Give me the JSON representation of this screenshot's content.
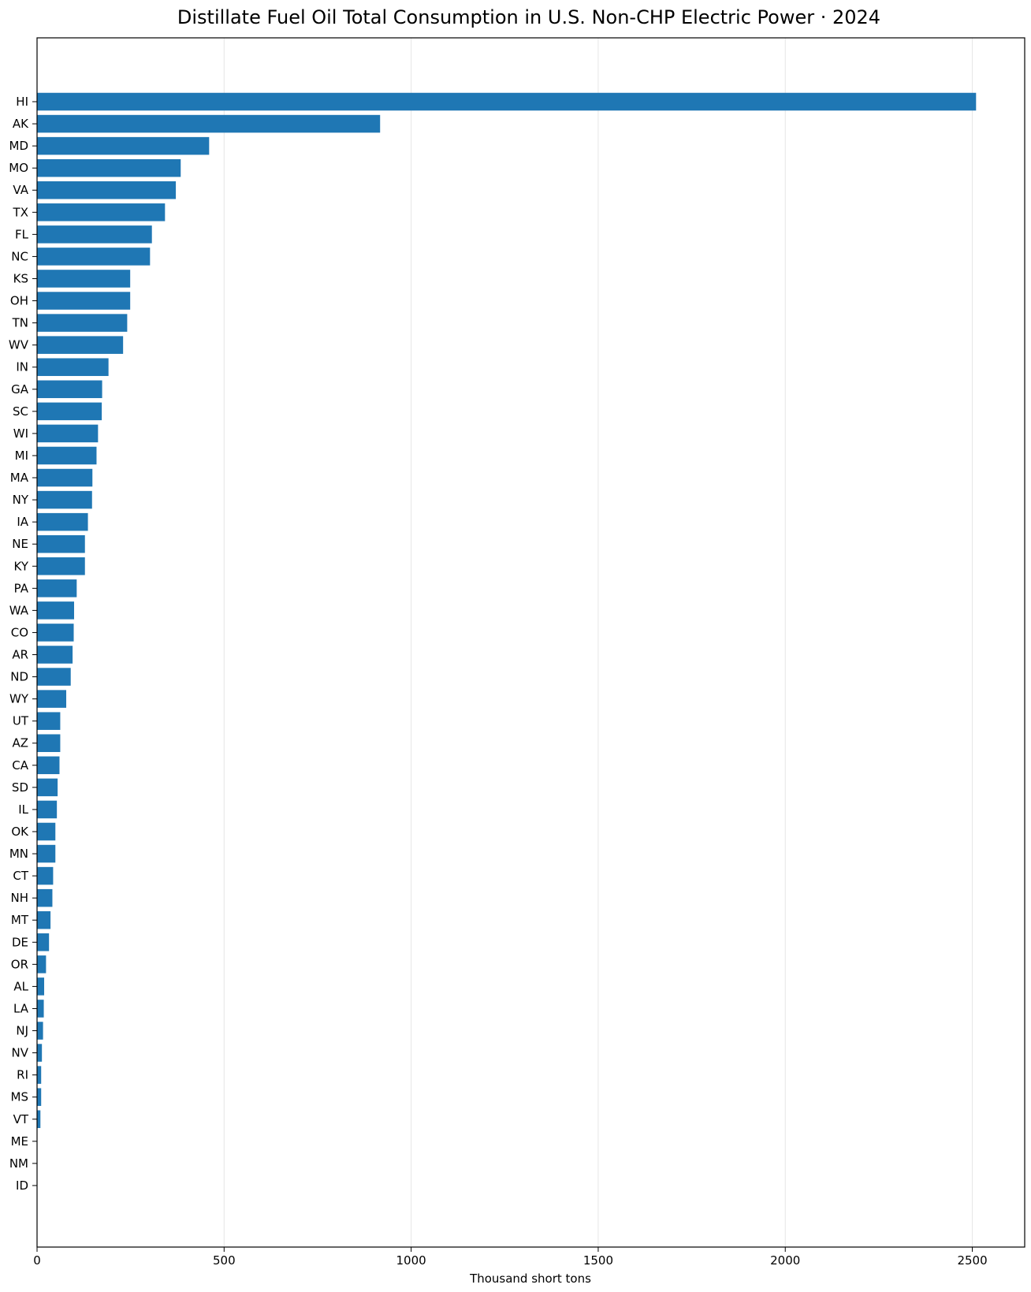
{
  "chart_data": {
    "type": "bar",
    "orientation": "horizontal",
    "title": "Distillate Fuel Oil Total Consumption in U.S. Non-CHP Electric Power · 2024",
    "xlabel": "Thousand short tons",
    "ylabel": "",
    "xlim": [
      0,
      2640
    ],
    "xticks": [
      0,
      500,
      1000,
      1500,
      2000,
      2500
    ],
    "grid": "vertical",
    "bar_color": "#1f77b4",
    "categories": [
      "HI",
      "AK",
      "MD",
      "MO",
      "VA",
      "TX",
      "FL",
      "NC",
      "KS",
      "OH",
      "TN",
      "WV",
      "IN",
      "GA",
      "SC",
      "WI",
      "MI",
      "MA",
      "NY",
      "IA",
      "NE",
      "KY",
      "PA",
      "WA",
      "CO",
      "AR",
      "ND",
      "WY",
      "UT",
      "AZ",
      "CA",
      "SD",
      "IL",
      "OK",
      "MN",
      "CT",
      "NH",
      "MT",
      "DE",
      "OR",
      "AL",
      "LA",
      "NJ",
      "NV",
      "RI",
      "MS",
      "VT",
      "ME",
      "NM",
      "ID"
    ],
    "values": [
      2510,
      917,
      460,
      384,
      371,
      342,
      307,
      302,
      249,
      249,
      241,
      230,
      191,
      174,
      173,
      163,
      159,
      148,
      147,
      136,
      128,
      128,
      106,
      99,
      98,
      95,
      90,
      78,
      62,
      62,
      60,
      55,
      53,
      49,
      49,
      43,
      41,
      36,
      32,
      24,
      19,
      18,
      16,
      13,
      11,
      11,
      9,
      1,
      1,
      0.5
    ]
  }
}
